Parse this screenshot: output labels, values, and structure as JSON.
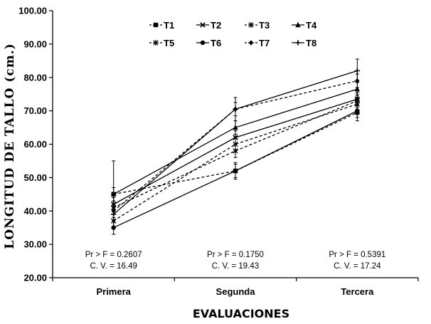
{
  "chart_data": {
    "type": "line",
    "title": "",
    "xlabel": "EVALUACIONES",
    "ylabel": "LONGITUD  DE  TALLO  (cm.)",
    "ylim": [
      20,
      100
    ],
    "y_ticks": [
      "20.00",
      "30.00",
      "40.00",
      "50.00",
      "60.00",
      "70.00",
      "80.00",
      "90.00",
      "100.00"
    ],
    "categories": [
      "Primera",
      "Segunda",
      "Tercera"
    ],
    "grid": false,
    "legend": "top-center",
    "series": [
      {
        "name": "T1",
        "values": [
          45.0,
          52.0,
          69.5
        ],
        "err": [
          10.0,
          2.5,
          2.5
        ],
        "dash": "4,3",
        "marker": "square"
      },
      {
        "name": "T2",
        "values": [
          42.0,
          62.0,
          73.5
        ],
        "err": [
          2.0,
          2.0,
          2.0
        ],
        "dash": "",
        "marker": "x"
      },
      {
        "name": "T3",
        "values": [
          41.0,
          58.0,
          73.0
        ],
        "err": [
          2.0,
          2.0,
          2.0
        ],
        "dash": "4,3",
        "marker": "asterisk"
      },
      {
        "name": "T4",
        "values": [
          45.0,
          65.0,
          76.5
        ],
        "err": [
          2.0,
          2.0,
          2.0
        ],
        "dash": "",
        "marker": "triangle"
      },
      {
        "name": "T5",
        "values": [
          37.0,
          60.0,
          72.0
        ],
        "err": [
          2.0,
          2.0,
          2.0
        ],
        "dash": "4,3",
        "marker": "asterisk"
      },
      {
        "name": "T6",
        "values": [
          35.0,
          52.0,
          70.0
        ],
        "err": [
          2.0,
          2.0,
          2.0
        ],
        "dash": "",
        "marker": "circle"
      },
      {
        "name": "T7",
        "values": [
          40.0,
          70.5,
          79.0
        ],
        "err": [
          2.0,
          3.5,
          2.0
        ],
        "dash": "4,3",
        "marker": "diamond"
      },
      {
        "name": "T8",
        "values": [
          39.0,
          70.5,
          82.0
        ],
        "err": [
          2.0,
          2.0,
          3.5
        ],
        "dash": "",
        "marker": "plus"
      }
    ],
    "annotations": [
      {
        "line1": "Pr > F = 0.2607",
        "line2": "C. V. = 16.49"
      },
      {
        "line1": "Pr > F = 0.1750",
        "line2": "C. V. = 19.43"
      },
      {
        "line1": "Pr > F = 0.5391",
        "line2": "C. V. = 17.24"
      }
    ],
    "colors": {
      "lines": "#000000",
      "background": "#ffffff"
    }
  }
}
